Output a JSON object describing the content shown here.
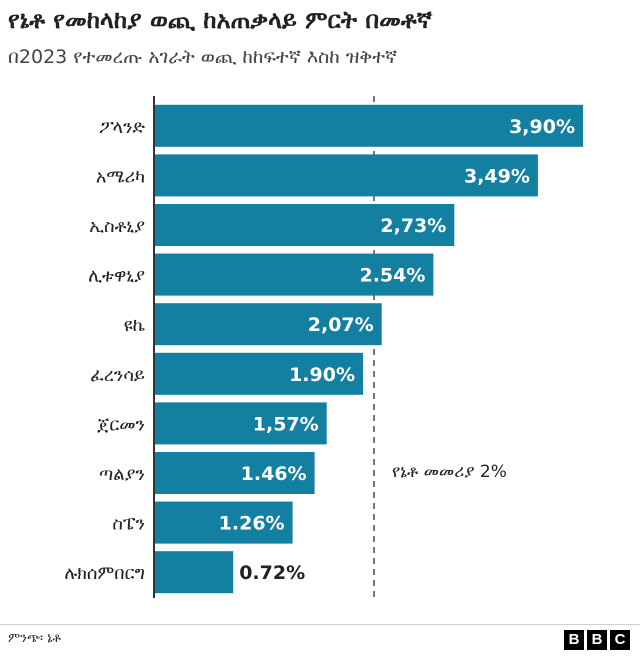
{
  "title": "የኔቶ የመከላከያ ወጪ ከአጠቃላይ ምርት በመቶኛ",
  "subtitle": "በ2023 የተመረጡ አገራት ወጪ ከከፍተኛ እስከ ዝቅተኛ",
  "source": "ምንጭ፡ ኔቶ",
  "logo": [
    "B",
    "B",
    "C"
  ],
  "colors": {
    "bar": "#1380a1",
    "label_inside": "#ffffff",
    "label_outside": "#222222",
    "reference_line": "#777777"
  },
  "chart_data": {
    "type": "bar",
    "orientation": "horizontal",
    "title": "የኔቶ የመከላከያ ወጪ ከአጠቃላይ ምርት በመቶኛ",
    "subtitle": "በ2023 የተመረጡ አገራት ወጪ ከከፍተኛ እስከ ዝቅተኛ",
    "categories": [
      "ፖላንድ",
      "አሜሪካ",
      "ኢስቶኒያ",
      "ሊቱዋኒያ",
      "ዩኬ",
      "ፈረንሳይ",
      "ጀርመን",
      "ጣልያን",
      "ስፔን",
      "ሉክሰምበርግ"
    ],
    "values": [
      3.9,
      3.49,
      2.73,
      2.54,
      2.07,
      1.9,
      1.57,
      1.46,
      1.26,
      0.72
    ],
    "value_labels": [
      "3,90%",
      "3,49%",
      "2,73%",
      "2.54%",
      "2,07%",
      "1.90%",
      "1,57%",
      "1.46%",
      "1.26%",
      "0.72%"
    ],
    "xlim": [
      0,
      4.0
    ],
    "grid": false,
    "reference_line": {
      "value": 2,
      "label": "የኔቶ መመሪያ 2%"
    }
  }
}
